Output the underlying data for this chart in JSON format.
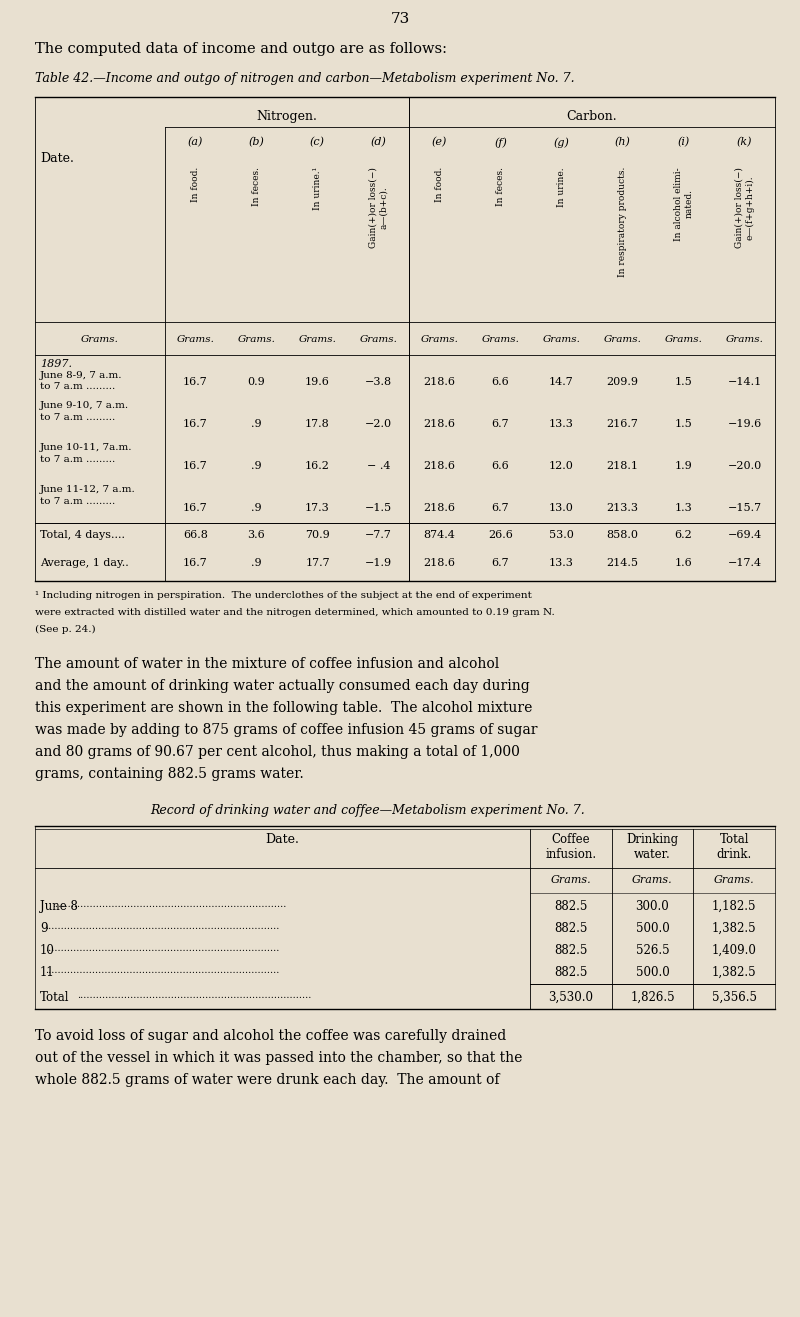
{
  "bg_color": "#e8e0d0",
  "page_number": "73",
  "intro_text": "The computed data of income and outgo are as follows:",
  "table1_title": "Table 42.—Income and outgo of nitrogen and carbon—Metabolism experiment No. 7.",
  "table1_group_headers": [
    "Nitrogen.",
    "Carbon."
  ],
  "table1_col_labels": [
    "(a)",
    "(b)",
    "(c)",
    "(d)",
    "(e)",
    "(f)",
    "(g)",
    "(h)",
    "(i)",
    "(k)"
  ],
  "table1_col_rotated": [
    "In food.",
    "In feces.",
    "In urine.¹",
    "Gain(+)or loss(−)\na—(b+c).",
    "In food.",
    "In feces.",
    "In urine.",
    "In respiratory products.",
    "In alcohol elimi-\nnated.",
    "Gain(+)or loss(−)\ne—(f+g+h+i)."
  ],
  "table1_unit_row": [
    "Grams.",
    "Grams.",
    "Grams.",
    "Grams.",
    "Grams.",
    "Grams.",
    "Grams.",
    "Grams.",
    "Grams.",
    "Grams."
  ],
  "table1_date_col": [
    [
      "1897.",
      "June 8-9, 7 a.m.",
      "to 7 a.m ........."
    ],
    [
      "June 9-10, 7 a.m.",
      "to 7 a.m ........."
    ],
    [
      "June 10-11, 7a.m.",
      "to 7 a.m ........."
    ],
    [
      "June 11-12, 7 a.m.",
      "to 7 a.m ........."
    ],
    [
      "Total, 4 days...."
    ],
    [
      "Average, 1 day.."
    ]
  ],
  "table1_data": [
    [
      "16.7",
      "0.9",
      "19.6",
      "−3.8",
      "218.6",
      "6.6",
      "14.7",
      "209.9",
      "1.5",
      "−14.1"
    ],
    [
      "16.7",
      ".9",
      "17.8",
      "−2.0",
      "218.6",
      "6.7",
      "13.3",
      "216.7",
      "1.5",
      "−19.6"
    ],
    [
      "16.7",
      ".9",
      "16.2",
      "− .4",
      "218.6",
      "6.6",
      "12.0",
      "218.1",
      "1.9",
      "−20.0"
    ],
    [
      "16.7",
      ".9",
      "17.3",
      "−1.5",
      "218.6",
      "6.7",
      "13.0",
      "213.3",
      "1.3",
      "−15.7"
    ],
    [
      "66.8",
      "3.6",
      "70.9",
      "−7.7",
      "874.4",
      "26.6",
      "53.0",
      "858.0",
      "6.2",
      "−69.4"
    ],
    [
      "16.7",
      ".9",
      "17.7",
      "−1.9",
      "218.6",
      "6.7",
      "13.3",
      "214.5",
      "1.6",
      "−17.4"
    ]
  ],
  "footnote": "¹ Including nitrogen in perspiration.  The underclothes of the subject at the end of experiment\nwere extracted with distilled water and the nitrogen determined, which amounted to 0.19 gram N.\n(See p. 24.)",
  "body_text": "The amount of water in the mixture of coffee infusion and alcohol\nand the amount of drinking water actually consumed each day during\nthis experiment are shown in the following table.  The alcohol mixture\nwas made by adding to 875 grams of coffee infusion 45 grams of sugar\nand 80 grams of 90.67 per cent alcohol, thus making a total of 1,000\ngrams, containing 882.5 grams water.",
  "table2_title": "Record of drinking water and coffee—Metabolism experiment No. 7.",
  "table2_col_headers": [
    "Date.",
    "Coffee\ninfusion.",
    "Drinking\nwater.",
    "Total\ndrink."
  ],
  "table2_unit_row": [
    "",
    "Grams.",
    "Grams.",
    "Grams."
  ],
  "table2_dates": [
    "June 8......................................................................",
    "9.......................................................................",
    "10......................................................................",
    "11......................................................................"
  ],
  "table2_data": [
    [
      "882.5",
      "300.0",
      "1,182.5"
    ],
    [
      "882.5",
      "500.0",
      "1,382.5"
    ],
    [
      "882.5",
      "526.5",
      "1,409.0"
    ],
    [
      "882.5",
      "500.0",
      "1,382.5"
    ]
  ],
  "table2_total": [
    "Total ......................................................................",
    "3,530.0",
    "1,826.5",
    "5,356.5"
  ],
  "closing_text": "To avoid loss of sugar and alcohol the coffee was carefully drained\nout of the vessel in which it was passed into the chamber, so that the\nwhole 882.5 grams of water were drunk each day.  The amount of"
}
